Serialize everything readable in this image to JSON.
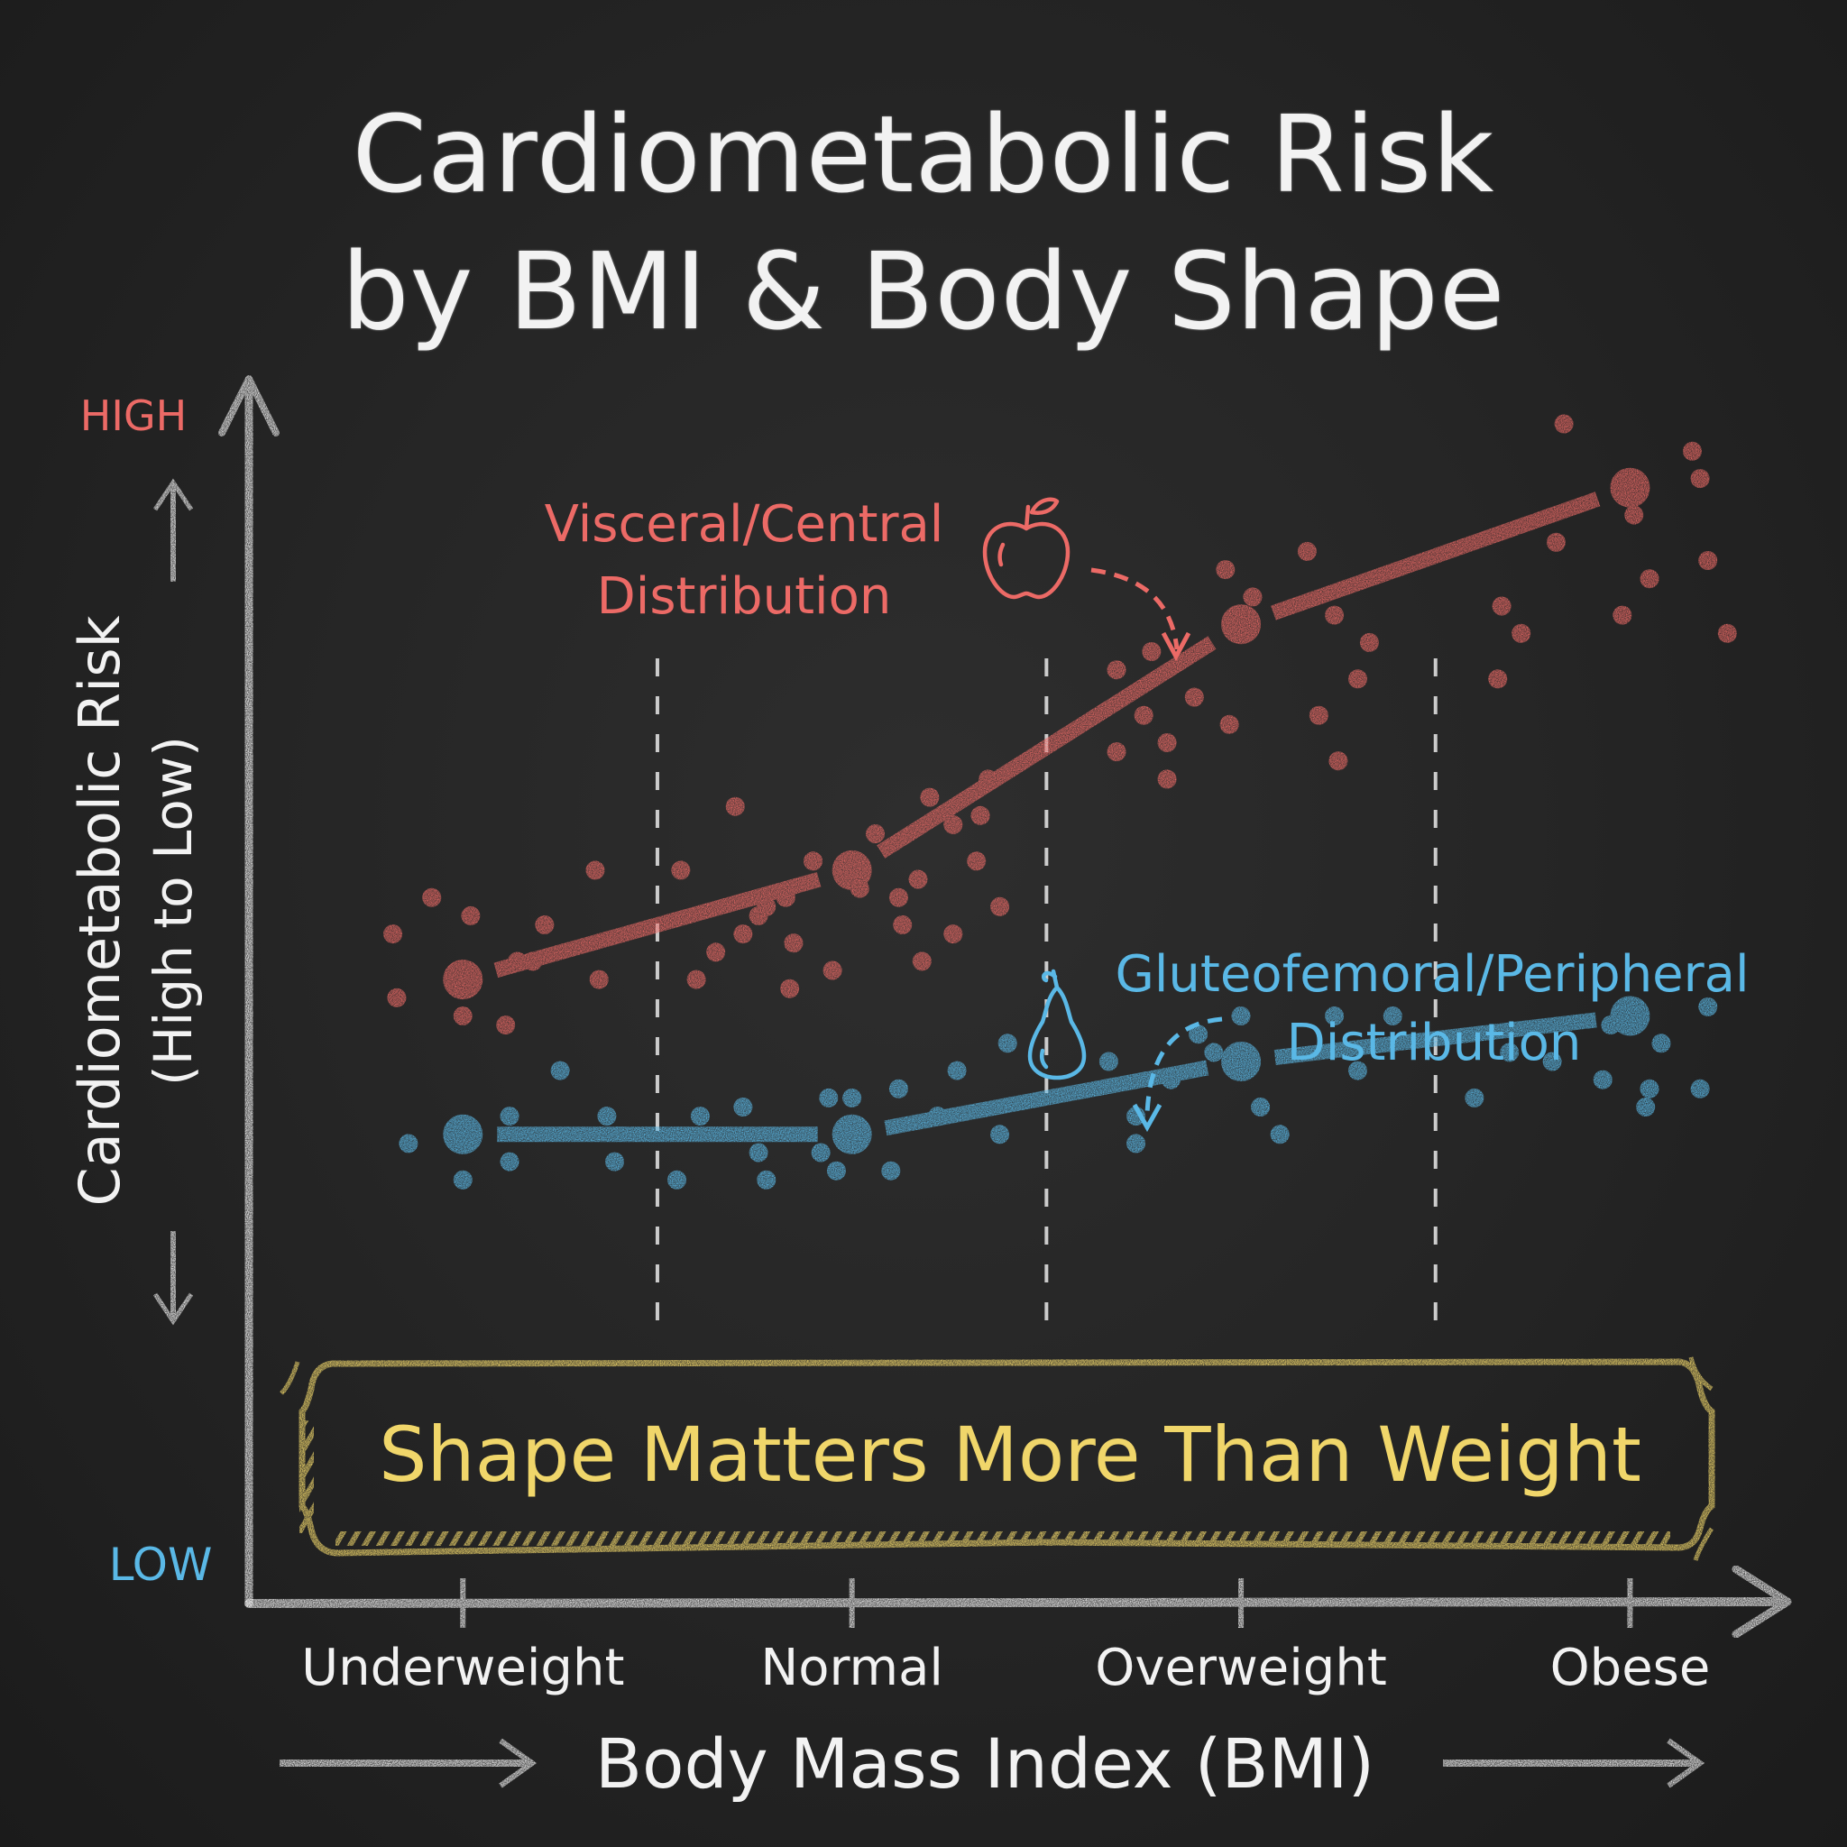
{
  "title": {
    "line1": "Cardiometabolic Risk",
    "line2": "by BMI & Body Shape"
  },
  "colors": {
    "background": "#262626",
    "chalk_white": "#f0f0f0",
    "visceral_red": "#ec6a66",
    "peripheral_blue": "#5ab8e6",
    "callout_yellow": "#f0d66a",
    "divider": "#e8e8e8"
  },
  "chart_data": {
    "type": "scatter",
    "title": "Cardiometabolic Risk by BMI & Body Shape",
    "xlabel": "Body Mass Index (BMI)",
    "ylabel": "Cardiometabolic Risk (High to Low)",
    "y_axis_top_label": "HIGH",
    "y_axis_bottom_label": "LOW",
    "categories": [
      "Underweight",
      "Normal",
      "Overweight",
      "Obese"
    ],
    "x_range": [
      -0.55,
      3.4
    ],
    "y_range": [
      0,
      100
    ],
    "grid": false,
    "category_dividers": [
      0.5,
      1.5,
      2.5
    ],
    "legend": "annotations",
    "series": [
      {
        "name": "Visceral/Central Distribution",
        "icon": "apple-icon",
        "color": "#ec6a66",
        "means": [
          39,
          51,
          78,
          93
        ],
        "points": [
          [
            -0.18,
            44
          ],
          [
            -0.08,
            48
          ],
          [
            0.02,
            46
          ],
          [
            0.14,
            41
          ],
          [
            0.21,
            45
          ],
          [
            -0.17,
            37
          ],
          [
            0.0,
            35
          ],
          [
            0.11,
            34
          ],
          [
            0.35,
            39
          ],
          [
            0.34,
            51
          ],
          [
            0.18,
            41
          ],
          [
            0.56,
            51
          ],
          [
            0.65,
            42
          ],
          [
            0.72,
            44
          ],
          [
            0.78,
            47
          ],
          [
            0.76,
            46
          ],
          [
            0.85,
            43
          ],
          [
            0.84,
            38
          ],
          [
            0.6,
            39
          ],
          [
            0.95,
            40
          ],
          [
            0.83,
            48
          ],
          [
            0.9,
            52
          ],
          [
            1.02,
            49
          ],
          [
            1.13,
            45
          ],
          [
            1.12,
            48
          ],
          [
            1.17,
            50
          ],
          [
            1.18,
            41
          ],
          [
            1.06,
            55
          ],
          [
            1.26,
            44
          ],
          [
            1.32,
            52
          ],
          [
            1.38,
            47
          ],
          [
            1.35,
            61
          ],
          [
            0.7,
            58
          ],
          [
            1.26,
            56
          ],
          [
            1.2,
            59
          ],
          [
            1.33,
            57
          ],
          [
            1.68,
            73
          ],
          [
            1.75,
            68
          ],
          [
            1.77,
            75
          ],
          [
            1.68,
            64
          ],
          [
            1.97,
            67
          ],
          [
            1.88,
            70
          ],
          [
            1.81,
            61
          ],
          [
            1.81,
            65
          ],
          [
            2.2,
            68
          ],
          [
            2.25,
            63
          ],
          [
            2.3,
            72
          ],
          [
            2.33,
            76
          ],
          [
            2.24,
            79
          ],
          [
            1.96,
            84
          ],
          [
            2.17,
            86
          ],
          [
            2.03,
            81
          ],
          [
            2.66,
            72
          ],
          [
            2.72,
            77
          ],
          [
            2.67,
            80
          ],
          [
            2.81,
            87
          ],
          [
            2.98,
            79
          ],
          [
            3.05,
            83
          ],
          [
            3.01,
            90
          ],
          [
            3.18,
            94
          ],
          [
            3.16,
            97
          ],
          [
            2.83,
            100
          ],
          [
            3.2,
            85
          ],
          [
            3.25,
            77
          ]
        ]
      },
      {
        "name": "Gluteofemoral/Peripheral Distribution",
        "icon": "pear-icon",
        "color": "#5ab8e6",
        "means": [
          22,
          22,
          30,
          35
        ],
        "points": [
          [
            -0.14,
            21
          ],
          [
            0.0,
            17
          ],
          [
            0.12,
            24
          ],
          [
            0.12,
            19
          ],
          [
            0.37,
            24
          ],
          [
            0.39,
            19
          ],
          [
            0.25,
            29
          ],
          [
            0.55,
            17
          ],
          [
            0.61,
            24
          ],
          [
            0.72,
            25
          ],
          [
            0.78,
            17
          ],
          [
            0.92,
            20
          ],
          [
            0.96,
            18
          ],
          [
            1.0,
            26
          ],
          [
            1.1,
            18
          ],
          [
            1.12,
            27
          ],
          [
            1.27,
            29
          ],
          [
            1.22,
            24
          ],
          [
            1.38,
            22
          ],
          [
            1.4,
            32
          ],
          [
            0.94,
            26
          ],
          [
            0.76,
            20
          ],
          [
            1.66,
            30
          ],
          [
            1.73,
            24
          ],
          [
            1.73,
            21
          ],
          [
            1.82,
            28
          ],
          [
            2.0,
            35
          ],
          [
            2.05,
            25
          ],
          [
            2.1,
            22
          ],
          [
            2.24,
            35
          ],
          [
            2.39,
            35
          ],
          [
            2.3,
            29
          ],
          [
            1.89,
            33
          ],
          [
            1.93,
            31
          ],
          [
            2.6,
            26
          ],
          [
            2.69,
            31
          ],
          [
            2.8,
            30
          ],
          [
            2.93,
            28
          ],
          [
            2.95,
            34
          ],
          [
            3.04,
            25
          ],
          [
            3.05,
            27
          ],
          [
            3.2,
            36
          ],
          [
            3.18,
            27
          ],
          [
            3.08,
            32
          ]
        ]
      }
    ],
    "annotations": {
      "visceral_label_line1": "Visceral/Central",
      "visceral_label_line2": "Distribution",
      "peripheral_label_line1": "Gluteofemoral/Peripheral",
      "peripheral_label_line2": "Distribution",
      "callout": "Shape Matters More Than Weight"
    }
  }
}
